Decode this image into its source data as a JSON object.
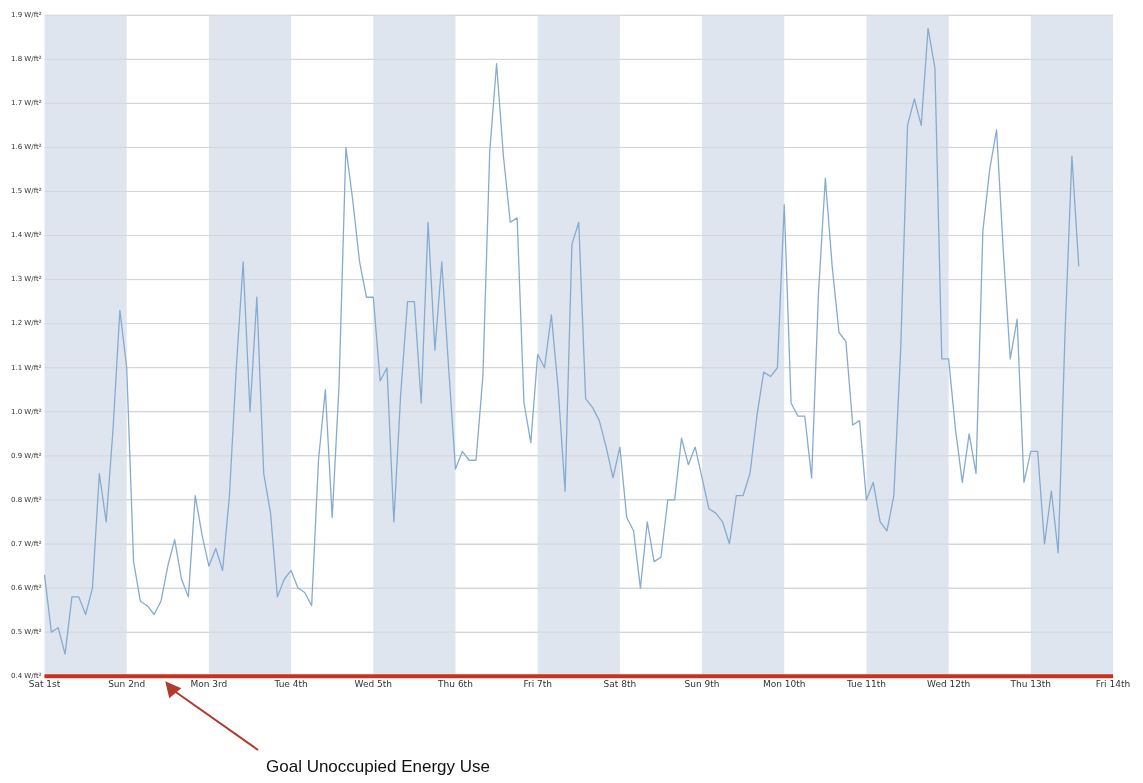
{
  "chart_data": {
    "type": "line",
    "categories": [
      "Sat 1st",
      null,
      null,
      null,
      null,
      null,
      null,
      null,
      null,
      null,
      null,
      null,
      "Sun 2nd",
      null,
      null,
      null,
      null,
      null,
      null,
      null,
      null,
      null,
      null,
      null,
      "Mon 3rd",
      null,
      null,
      null,
      null,
      null,
      null,
      null,
      null,
      null,
      null,
      null,
      "Tue 4th",
      null,
      null,
      null,
      null,
      null,
      null,
      null,
      null,
      null,
      null,
      null,
      "Wed 5th",
      null,
      null,
      null,
      null,
      null,
      null,
      null,
      null,
      null,
      null,
      null,
      "Thu 6th",
      null,
      null,
      null,
      null,
      null,
      null,
      null,
      null,
      null,
      null,
      null,
      "Fri 7th",
      null,
      null,
      null,
      null,
      null,
      null,
      null,
      null,
      null,
      null,
      null,
      "Sat 8th",
      null,
      null,
      null,
      null,
      null,
      null,
      null,
      null,
      null,
      null,
      null,
      "Sun 9th",
      null,
      null,
      null,
      null,
      null,
      null,
      null,
      null,
      null,
      null,
      null,
      "Mon 10th",
      null,
      null,
      null,
      null,
      null,
      null,
      null,
      null,
      null,
      null,
      null,
      "Tue 11th",
      null,
      null,
      null,
      null,
      null,
      null,
      null,
      null,
      null,
      null,
      null,
      "Wed 12th",
      null,
      null,
      null,
      null,
      null,
      null,
      null,
      null,
      null,
      null,
      null,
      "Thu 13th",
      null,
      null,
      null,
      null,
      null,
      null,
      null,
      null,
      null,
      null,
      null,
      "Fri 14th"
    ],
    "values": [
      0.63,
      0.5,
      0.51,
      0.45,
      0.58,
      0.58,
      0.54,
      0.6,
      0.86,
      0.75,
      0.96,
      1.23,
      1.1,
      0.66,
      0.57,
      0.56,
      0.54,
      0.57,
      0.65,
      0.71,
      0.62,
      0.58,
      0.81,
      0.72,
      0.65,
      0.69,
      0.64,
      0.81,
      1.1,
      1.34,
      1.0,
      1.26,
      0.86,
      0.77,
      0.58,
      0.62,
      0.64,
      0.6,
      0.59,
      0.56,
      0.89,
      1.05,
      0.76,
      1.06,
      1.6,
      1.48,
      1.34,
      1.26,
      1.26,
      1.07,
      1.1,
      0.75,
      1.04,
      1.25,
      1.25,
      1.02,
      1.43,
      1.14,
      1.34,
      1.1,
      0.87,
      0.91,
      0.89,
      0.89,
      1.08,
      1.59,
      1.79,
      1.58,
      1.43,
      1.44,
      1.02,
      0.93,
      1.13,
      1.1,
      1.22,
      1.05,
      0.82,
      1.38,
      1.43,
      1.03,
      1.01,
      0.98,
      0.92,
      0.85,
      0.92,
      0.76,
      0.73,
      0.6,
      0.75,
      0.66,
      0.67,
      0.8,
      0.8,
      0.94,
      0.88,
      0.92,
      0.85,
      0.78,
      0.77,
      0.75,
      0.7,
      0.81,
      0.81,
      0.86,
      0.99,
      1.09,
      1.08,
      1.1,
      1.47,
      1.02,
      0.99,
      0.99,
      0.85,
      1.27,
      1.53,
      1.33,
      1.18,
      1.16,
      0.97,
      0.98,
      0.8,
      0.84,
      0.75,
      0.73,
      0.81,
      1.14,
      1.65,
      1.71,
      1.65,
      1.87,
      1.78,
      1.12,
      1.12,
      0.96,
      0.84,
      0.95,
      0.86,
      1.41,
      1.55,
      1.64,
      1.36,
      1.12,
      1.21,
      0.84,
      0.91,
      0.91,
      0.7,
      0.82,
      0.68,
      1.18,
      1.58,
      1.33,
      null,
      null,
      null,
      null,
      null
    ],
    "color": "#86abd0",
    "ylim": [
      0.4,
      1.9
    ],
    "yticks": [
      {
        "value": 0.4,
        "label": "0.4 W/ft²"
      },
      {
        "value": 0.5,
        "label": "0.5 W/ft²"
      },
      {
        "value": 0.6,
        "label": "0.6 W/ft²"
      },
      {
        "value": 0.7,
        "label": "0.7 W/ft²"
      },
      {
        "value": 0.8,
        "label": "0.8 W/ft²"
      },
      {
        "value": 0.9,
        "label": "0.9 W/ft²"
      },
      {
        "value": 1.0,
        "label": "1.0 W/ft²"
      },
      {
        "value": 1.1,
        "label": "1.1 W/ft²"
      },
      {
        "value": 1.2,
        "label": "1.2 W/ft²"
      },
      {
        "value": 1.3,
        "label": "1.3 W/ft²"
      },
      {
        "value": 1.4,
        "label": "1.4 W/ft²"
      },
      {
        "value": 1.5,
        "label": "1.5 W/ft²"
      },
      {
        "value": 1.6,
        "label": "1.6 W/ft²"
      },
      {
        "value": 1.7,
        "label": "1.7 W/ft²"
      },
      {
        "value": 1.8,
        "label": "1.8 W/ft²"
      },
      {
        "value": 1.9,
        "label": "1.9 W/ft²"
      }
    ],
    "grid": "y",
    "marker": "none",
    "line_style": "solid",
    "bands": [
      {
        "axis": "x",
        "from": "Sat 1st",
        "to": "Sun 2nd",
        "color": "#dfe5ee"
      },
      {
        "axis": "x",
        "from": "Mon 3rd",
        "to": "Tue 4th",
        "color": "#dfe5ee"
      },
      {
        "axis": "x",
        "from": "Wed 5th",
        "to": "Thu 6th",
        "color": "#dfe5ee"
      },
      {
        "axis": "x",
        "from": "Fri 7th",
        "to": "Sat 8th",
        "color": "#dfe5ee"
      },
      {
        "axis": "x",
        "from": "Sun 9th",
        "to": "Mon 10th",
        "color": "#dfe5ee"
      },
      {
        "axis": "x",
        "from": "Tue 11th",
        "to": "Wed 12th",
        "color": "#dfe5ee"
      },
      {
        "axis": "x",
        "from": "Thu 13th",
        "to": "Fri 14th",
        "color": "#dfe5ee"
      }
    ],
    "ref_lines": [
      {
        "axis": "y",
        "value": 0.4,
        "color": "#c8321e",
        "line_style": "solid"
      }
    ],
    "annotations": [
      "Goal Unoccupied Energy Use"
    ]
  }
}
